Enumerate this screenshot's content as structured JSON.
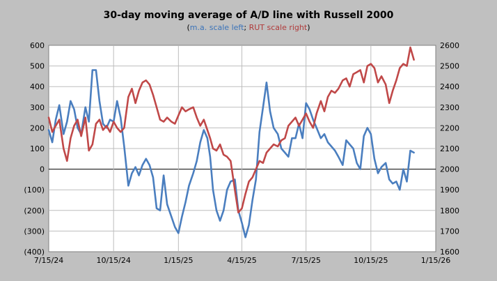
{
  "chart_data": {
    "type": "line",
    "title": "30-day moving average of A/D line with Russell 2000",
    "subtitle": {
      "open": "(",
      "left_part": "m.a. scale left",
      "sep": "; ",
      "right_part": "RUT scale right",
      "close": ")"
    },
    "x_ticks": [
      "7/15/24",
      "10/15/24",
      "1/15/25",
      "4/15/25",
      "7/15/25",
      "10/15/25",
      "1/15/26"
    ],
    "y_left_ticks": [
      "600",
      "500",
      "400",
      "300",
      "200",
      "100",
      "0",
      "(100)",
      "(200)",
      "(300)",
      "(400)"
    ],
    "y_right_ticks": [
      "2600",
      "2500",
      "2400",
      "2300",
      "2200",
      "2100",
      "2000",
      "1900",
      "1800",
      "1700",
      "1600"
    ],
    "ylim_left": [
      -400,
      600
    ],
    "ylim_right": [
      1600,
      2600
    ],
    "grid": true,
    "zero_line": true,
    "colors": {
      "ma": "#4a7ebf",
      "rut": "#c04848",
      "grid": "#bdbdbd",
      "background": "#c0c0c0",
      "plot": "#ffffff"
    },
    "series": [
      {
        "key": "ma",
        "axis": "left",
        "x": [
          "2024-07-15",
          "2024-07-20",
          "2024-07-25",
          "2024-07-30",
          "2024-08-05",
          "2024-08-10",
          "2024-08-15",
          "2024-08-20",
          "2024-08-25",
          "2024-08-30",
          "2024-09-05",
          "2024-09-10",
          "2024-09-15",
          "2024-09-20",
          "2024-09-25",
          "2024-09-30",
          "2024-10-05",
          "2024-10-10",
          "2024-10-15",
          "2024-10-20",
          "2024-10-25",
          "2024-10-30",
          "2024-11-05",
          "2024-11-10",
          "2024-11-15",
          "2024-11-20",
          "2024-11-25",
          "2024-11-30",
          "2024-12-05",
          "2024-12-10",
          "2024-12-15",
          "2024-12-20",
          "2024-12-25",
          "2024-12-30",
          "2025-01-05",
          "2025-01-10",
          "2025-01-15",
          "2025-01-20",
          "2025-01-25",
          "2025-01-30",
          "2025-02-05",
          "2025-02-10",
          "2025-02-15",
          "2025-02-20",
          "2025-02-25",
          "2025-03-01",
          "2025-03-05",
          "2025-03-10",
          "2025-03-15",
          "2025-03-20",
          "2025-03-25",
          "2025-03-30",
          "2025-04-05",
          "2025-04-10",
          "2025-04-15",
          "2025-04-20",
          "2025-04-25",
          "2025-04-30",
          "2025-05-05",
          "2025-05-10",
          "2025-05-15",
          "2025-05-20",
          "2025-05-25",
          "2025-05-30",
          "2025-06-05",
          "2025-06-10",
          "2025-06-15",
          "2025-06-20",
          "2025-06-25",
          "2025-06-30",
          "2025-07-05",
          "2025-07-10",
          "2025-07-15",
          "2025-07-20",
          "2025-07-25",
          "2025-07-30",
          "2025-08-05",
          "2025-08-10",
          "2025-08-15",
          "2025-08-20",
          "2025-08-25",
          "2025-08-30",
          "2025-09-05",
          "2025-09-10",
          "2025-09-15",
          "2025-09-20",
          "2025-09-25",
          "2025-09-30",
          "2025-10-05",
          "2025-10-10",
          "2025-10-15",
          "2025-10-20",
          "2025-10-25",
          "2025-10-30",
          "2025-11-05",
          "2025-11-10",
          "2025-11-15",
          "2025-11-20",
          "2025-11-25",
          "2025-11-30",
          "2025-12-05",
          "2025-12-10",
          "2025-12-15"
        ],
        "y": [
          190,
          130,
          240,
          310,
          170,
          230,
          330,
          290,
          200,
          170,
          300,
          230,
          480,
          480,
          330,
          220,
          200,
          240,
          230,
          330,
          250,
          110,
          -80,
          -20,
          10,
          -30,
          20,
          50,
          20,
          -40,
          -190,
          -200,
          -30,
          -170,
          -230,
          -280,
          -310,
          -230,
          -160,
          -80,
          -20,
          40,
          130,
          190,
          150,
          60,
          -100,
          -200,
          -250,
          -200,
          -100,
          -60,
          -50,
          -200,
          -260,
          -330,
          -270,
          -150,
          -50,
          180,
          300,
          420,
          280,
          200,
          170,
          100,
          80,
          60,
          150,
          150,
          220,
          150,
          320,
          290,
          240,
          200,
          150,
          170,
          130,
          110,
          90,
          60,
          20,
          140,
          120,
          100,
          30,
          0,
          160,
          200,
          170,
          50,
          -20,
          10,
          30,
          -50,
          -70,
          -60,
          -100,
          0,
          -60,
          90,
          80
        ]
      },
      {
        "key": "rut",
        "axis": "right",
        "x": [
          "2024-07-15",
          "2024-07-20",
          "2024-07-25",
          "2024-07-30",
          "2024-08-05",
          "2024-08-10",
          "2024-08-15",
          "2024-08-20",
          "2024-08-25",
          "2024-08-30",
          "2024-09-05",
          "2024-09-10",
          "2024-09-15",
          "2024-09-20",
          "2024-09-25",
          "2024-09-30",
          "2024-10-05",
          "2024-10-10",
          "2024-10-15",
          "2024-10-20",
          "2024-10-25",
          "2024-10-30",
          "2024-11-05",
          "2024-11-10",
          "2024-11-15",
          "2024-11-20",
          "2024-11-25",
          "2024-11-30",
          "2024-12-05",
          "2024-12-10",
          "2024-12-15",
          "2024-12-20",
          "2024-12-25",
          "2024-12-30",
          "2025-01-05",
          "2025-01-10",
          "2025-01-15",
          "2025-01-20",
          "2025-01-25",
          "2025-01-30",
          "2025-02-05",
          "2025-02-10",
          "2025-02-15",
          "2025-02-20",
          "2025-02-25",
          "2025-03-01",
          "2025-03-05",
          "2025-03-10",
          "2025-03-15",
          "2025-03-20",
          "2025-03-25",
          "2025-03-30",
          "2025-04-05",
          "2025-04-10",
          "2025-04-15",
          "2025-04-20",
          "2025-04-25",
          "2025-04-30",
          "2025-05-05",
          "2025-05-10",
          "2025-05-15",
          "2025-05-20",
          "2025-05-25",
          "2025-05-30",
          "2025-06-05",
          "2025-06-10",
          "2025-06-15",
          "2025-06-20",
          "2025-06-25",
          "2025-06-30",
          "2025-07-05",
          "2025-07-10",
          "2025-07-15",
          "2025-07-20",
          "2025-07-25",
          "2025-07-30",
          "2025-08-05",
          "2025-08-10",
          "2025-08-15",
          "2025-08-20",
          "2025-08-25",
          "2025-08-30",
          "2025-09-05",
          "2025-09-10",
          "2025-09-15",
          "2025-09-20",
          "2025-09-25",
          "2025-09-30",
          "2025-10-05",
          "2025-10-10",
          "2025-10-15",
          "2025-10-20",
          "2025-10-25",
          "2025-10-30",
          "2025-11-05",
          "2025-11-10",
          "2025-11-15",
          "2025-11-20",
          "2025-11-25",
          "2025-11-30",
          "2025-12-05",
          "2025-12-10",
          "2025-12-15"
        ],
        "y": [
          2250,
          2180,
          2210,
          2240,
          2100,
          2040,
          2150,
          2210,
          2240,
          2160,
          2250,
          2090,
          2120,
          2220,
          2240,
          2190,
          2210,
          2180,
          2230,
          2200,
          2180,
          2200,
          2350,
          2390,
          2320,
          2380,
          2420,
          2430,
          2410,
          2360,
          2300,
          2240,
          2230,
          2250,
          2230,
          2220,
          2260,
          2300,
          2280,
          2290,
          2300,
          2250,
          2210,
          2240,
          2190,
          2150,
          2100,
          2090,
          2120,
          2070,
          2060,
          2040,
          1900,
          1790,
          1810,
          1880,
          1940,
          1960,
          2000,
          2040,
          2030,
          2080,
          2100,
          2120,
          2110,
          2140,
          2150,
          2210,
          2230,
          2250,
          2210,
          2240,
          2270,
          2230,
          2200,
          2270,
          2330,
          2280,
          2350,
          2380,
          2370,
          2390,
          2430,
          2440,
          2400,
          2460,
          2470,
          2480,
          2420,
          2500,
          2510,
          2490,
          2420,
          2450,
          2410,
          2320,
          2380,
          2430,
          2490,
          2510,
          2500,
          2590,
          2530
        ]
      }
    ]
  }
}
